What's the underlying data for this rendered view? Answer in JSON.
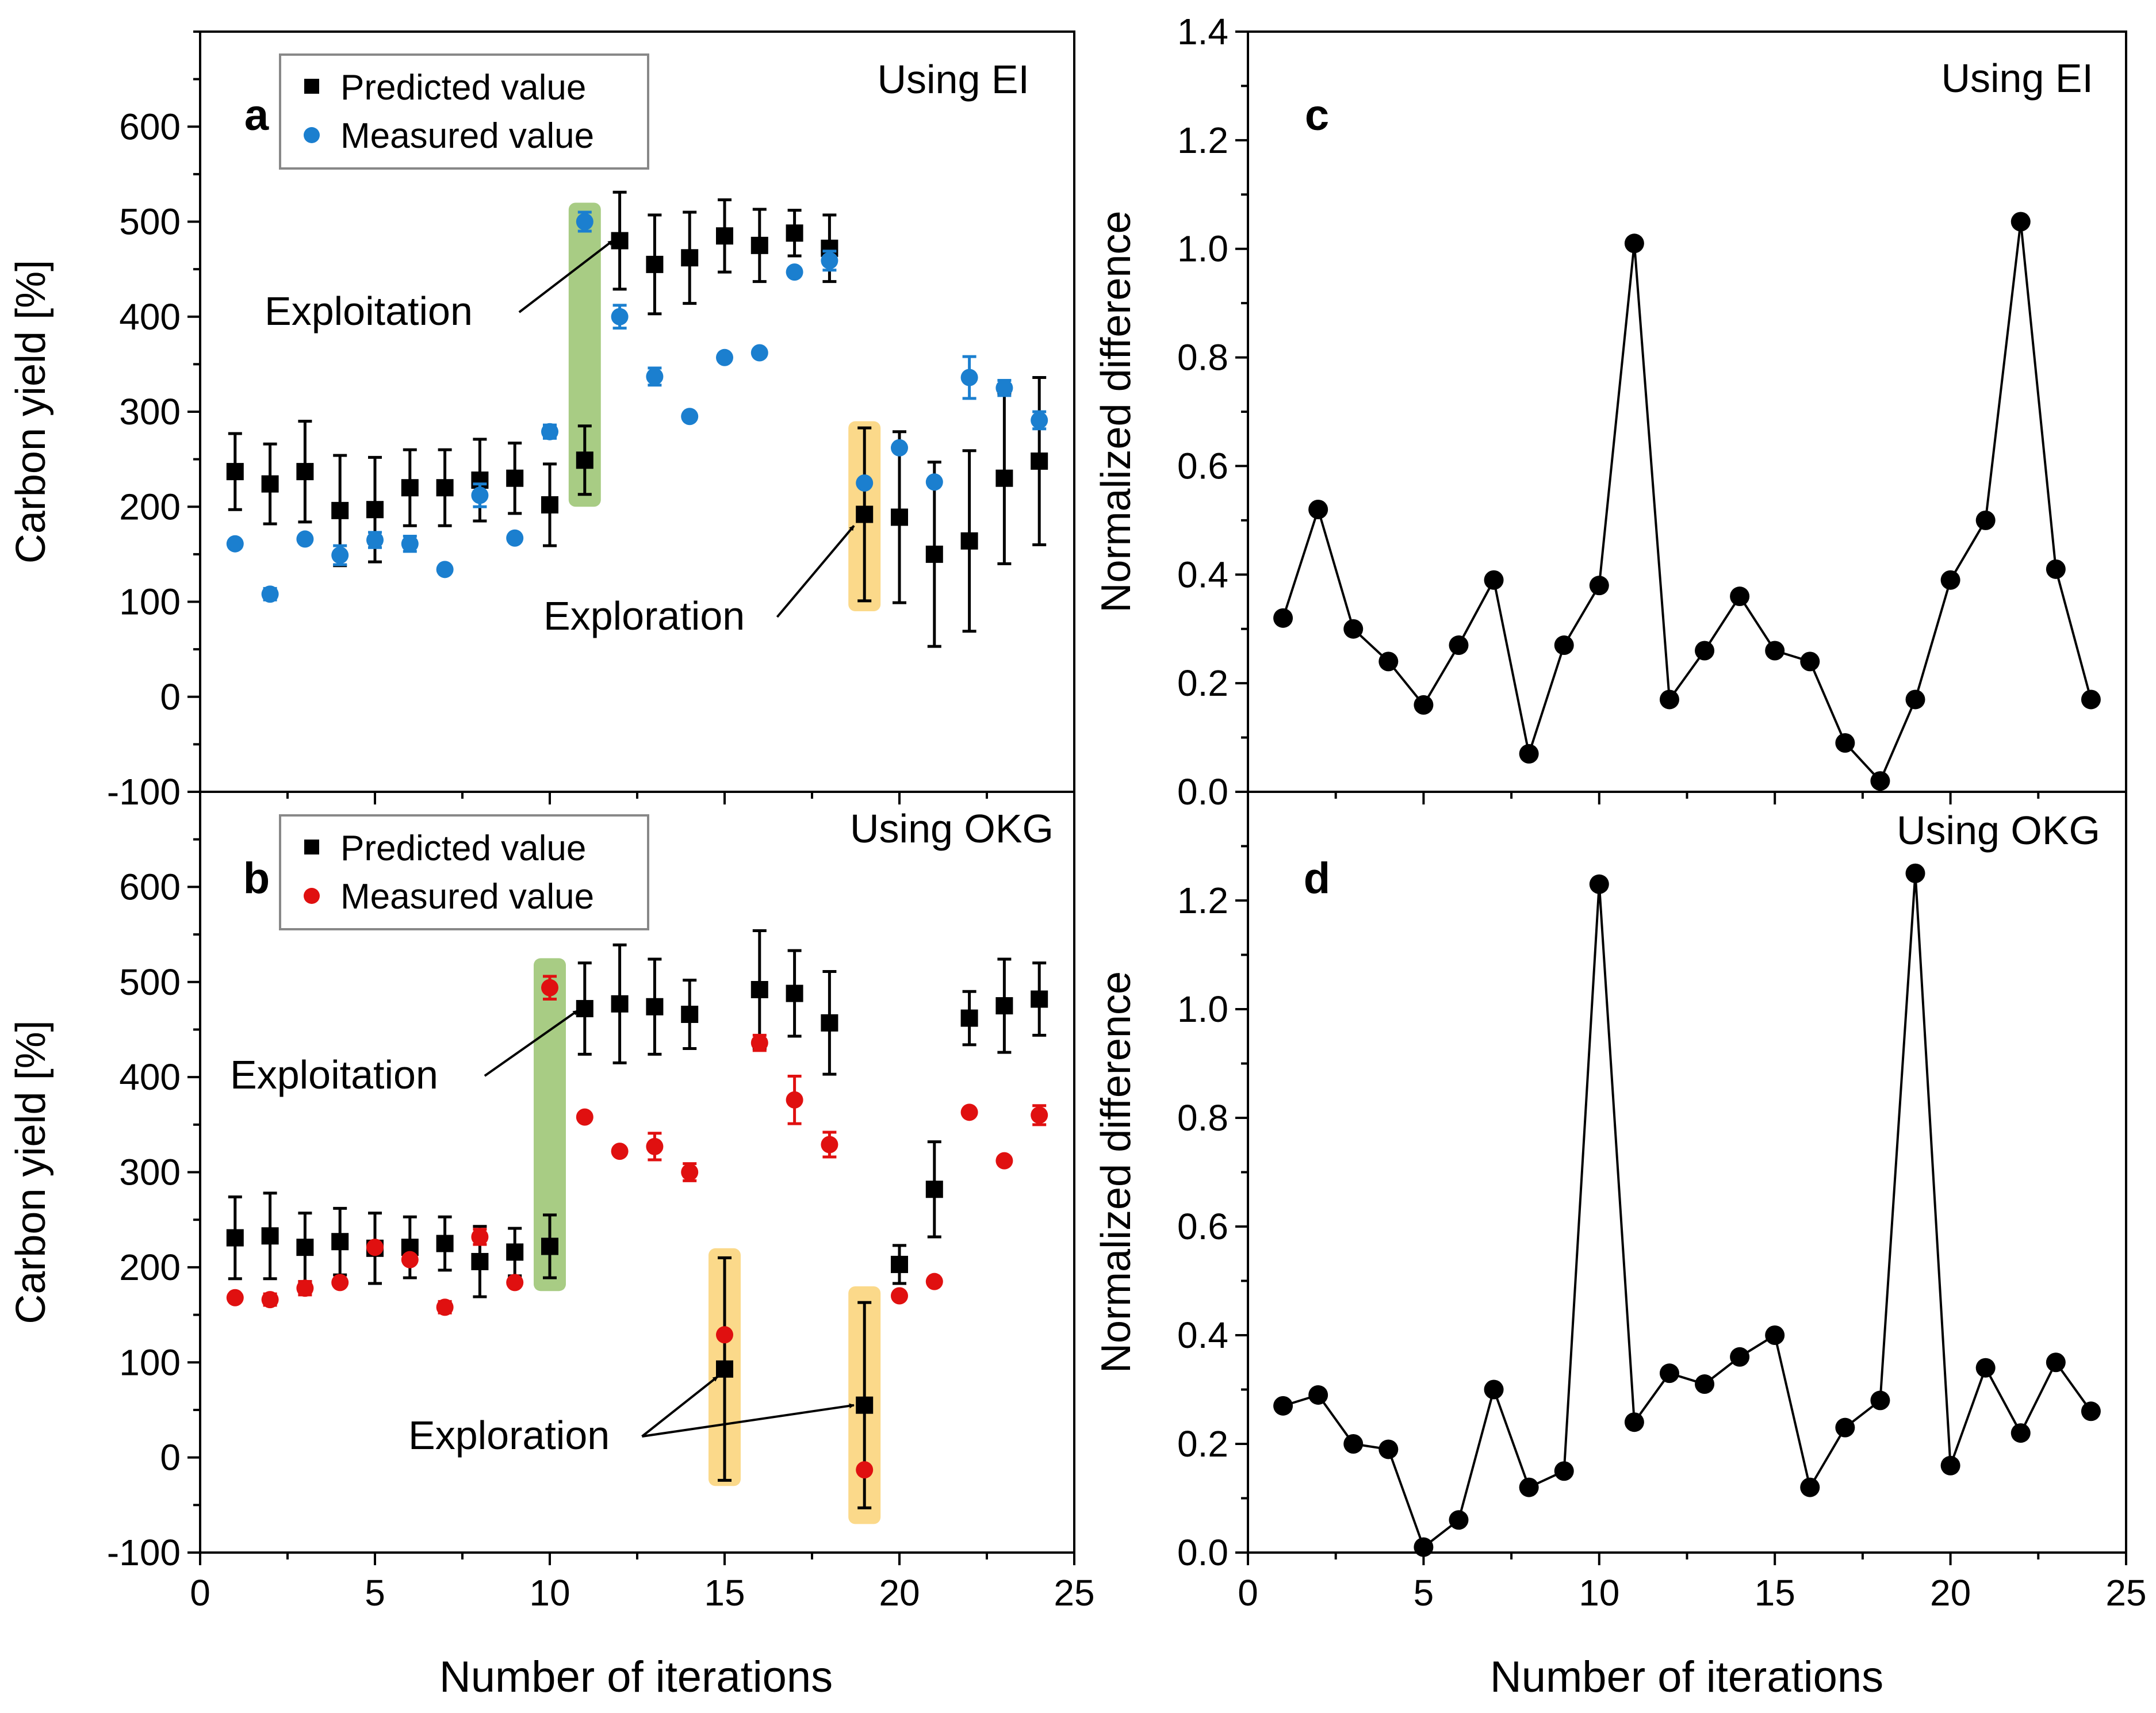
{
  "figure": {
    "xlabel": "Number of iterations",
    "colors": {
      "predicted": "#000000",
      "measured_ei": "#1b7fcf",
      "measured_okg": "#e01010",
      "exploit_highlight": "#a8cc84",
      "explore_highlight": "#fbd98a"
    }
  },
  "chart_data": [
    {
      "id": "a",
      "panel_label": "a",
      "type": "scatter",
      "corner_title": "Using EI",
      "xlabel": "Number of iterations",
      "ylabel": "Carbon yield [%]",
      "xlim": [
        0,
        25
      ],
      "ylim": [
        -100,
        700
      ],
      "xticks": [
        0,
        5,
        10,
        15,
        20,
        25
      ],
      "yticks": [
        -100,
        0,
        100,
        200,
        300,
        400,
        500,
        600
      ],
      "legend": {
        "position": "top-left",
        "entries": [
          "Predicted value",
          "Measured value"
        ]
      },
      "series": [
        {
          "name": "Predicted value",
          "marker": "square",
          "x": [
            1,
            2,
            3,
            4,
            5,
            6,
            7,
            8,
            9,
            10,
            11,
            12,
            13,
            14,
            15,
            16,
            17,
            18,
            19,
            20,
            21,
            22,
            23,
            24
          ],
          "values": [
            237,
            224,
            237,
            196,
            197,
            220,
            220,
            228,
            230,
            202,
            249,
            480,
            455,
            462,
            485,
            475,
            488,
            472,
            192,
            189,
            150,
            164,
            230,
            248
          ],
          "err": [
            40,
            42,
            53,
            58,
            55,
            40,
            40,
            43,
            37,
            43,
            36,
            51,
            52,
            48,
            38,
            38,
            24,
            35,
            91,
            90,
            97,
            95,
            90,
            88
          ]
        },
        {
          "name": "Measured value",
          "marker": "circle",
          "x": [
            1,
            2,
            3,
            4,
            5,
            6,
            7,
            8,
            9,
            10,
            11,
            12,
            13,
            14,
            15,
            16,
            17,
            18,
            19,
            20,
            21,
            22,
            23,
            24
          ],
          "values": [
            161,
            108,
            166,
            149,
            165,
            161,
            134,
            212,
            167,
            279,
            500,
            400,
            337,
            295,
            357,
            362,
            447,
            459,
            225,
            262,
            226,
            336,
            325,
            291
          ],
          "err": [
            0,
            6,
            0,
            10,
            8,
            8,
            0,
            12,
            0,
            7,
            10,
            12,
            9,
            0,
            0,
            0,
            0,
            10,
            0,
            0,
            0,
            22,
            8,
            9
          ]
        }
      ],
      "highlights": [
        {
          "x": 11,
          "y_range": [
            200,
            520
          ],
          "kind": "exploit"
        },
        {
          "x": 19,
          "y_range": [
            90,
            290
          ],
          "kind": "explore"
        }
      ],
      "annotations": [
        {
          "text": "Exploitation",
          "target_x": 11.8,
          "target_y": 480
        },
        {
          "text": "Exploration",
          "target_x": 18.7,
          "target_y": 180
        }
      ]
    },
    {
      "id": "b",
      "panel_label": "b",
      "type": "scatter",
      "corner_title": "Using OKG",
      "xlabel": "Number of iterations",
      "ylabel": "Carbon yield [%]",
      "xlim": [
        0,
        25
      ],
      "ylim": [
        -100,
        700
      ],
      "xticks": [
        0,
        5,
        10,
        15,
        20,
        25
      ],
      "yticks": [
        -100,
        0,
        100,
        200,
        300,
        400,
        500,
        600
      ],
      "legend": {
        "position": "top-left",
        "entries": [
          "Predicted value",
          "Measured value"
        ]
      },
      "series": [
        {
          "name": "Predicted value",
          "marker": "square",
          "x": [
            1,
            2,
            3,
            4,
            5,
            6,
            7,
            8,
            9,
            10,
            11,
            12,
            13,
            14,
            15,
            16,
            17,
            18,
            19,
            20,
            21,
            22,
            23,
            24
          ],
          "values": [
            231,
            233,
            221,
            227,
            220,
            221,
            225,
            206,
            216,
            222,
            472,
            477,
            474,
            466,
            93,
            492,
            488,
            457,
            55,
            203,
            282,
            462,
            475,
            482
          ],
          "err": [
            43,
            45,
            36,
            35,
            37,
            32,
            28,
            37,
            25,
            33,
            48,
            62,
            50,
            36,
            117,
            62,
            45,
            54,
            108,
            20,
            50,
            28,
            49,
            38
          ]
        },
        {
          "name": "Measured value",
          "marker": "circle",
          "x": [
            1,
            2,
            3,
            4,
            5,
            6,
            7,
            8,
            9,
            10,
            11,
            12,
            13,
            14,
            15,
            16,
            17,
            18,
            19,
            20,
            21,
            22,
            23,
            24
          ],
          "values": [
            168,
            166,
            178,
            184,
            221,
            208,
            158,
            232,
            184,
            494,
            358,
            322,
            327,
            300,
            129,
            436,
            376,
            329,
            -13,
            170,
            185,
            363,
            312,
            360
          ],
          "err": [
            0,
            6,
            7,
            0,
            0,
            0,
            6,
            8,
            0,
            12,
            0,
            0,
            14,
            9,
            0,
            8,
            25,
            13,
            0,
            0,
            0,
            0,
            0,
            10
          ]
        }
      ],
      "highlights": [
        {
          "x": 10,
          "y_range": [
            175,
            525
          ],
          "kind": "exploit"
        },
        {
          "x": 15,
          "y_range": [
            -30,
            220
          ],
          "kind": "explore"
        },
        {
          "x": 19,
          "y_range": [
            -70,
            180
          ],
          "kind": "explore"
        }
      ],
      "annotations": [
        {
          "text": "Exploitation",
          "target_x": 10.8,
          "target_y": 470
        },
        {
          "text": "Exploration",
          "target_x": 14.8,
          "target_y": 85
        },
        {
          "text": "Exploration",
          "target_x": 18.7,
          "target_y": 55
        }
      ]
    },
    {
      "id": "c",
      "panel_label": "c",
      "type": "line",
      "corner_title": "Using EI",
      "xlabel": "Number of iterations",
      "ylabel": "Normalized difference",
      "xlim": [
        0,
        25
      ],
      "ylim": [
        0,
        1.4
      ],
      "xticks": [
        0,
        5,
        10,
        15,
        20,
        25
      ],
      "yticks": [
        0.0,
        0.2,
        0.4,
        0.6,
        0.8,
        1.0,
        1.2,
        1.4
      ],
      "ytick_labels": [
        "0.0",
        "0.2",
        "0.4",
        "0.6",
        "0.8",
        "1.0",
        "1.2",
        "1.4"
      ],
      "series": [
        {
          "name": "Normalized difference",
          "marker": "circle",
          "x": [
            1,
            2,
            3,
            4,
            5,
            6,
            7,
            8,
            9,
            10,
            11,
            12,
            13,
            14,
            15,
            16,
            17,
            18,
            19,
            20,
            21,
            22,
            23,
            24
          ],
          "values": [
            0.32,
            0.52,
            0.3,
            0.24,
            0.16,
            0.27,
            0.39,
            0.07,
            0.27,
            0.38,
            1.01,
            0.17,
            0.26,
            0.36,
            0.26,
            0.24,
            0.09,
            0.02,
            0.17,
            0.39,
            0.5,
            1.05,
            0.41,
            0.17
          ]
        }
      ]
    },
    {
      "id": "d",
      "panel_label": "d",
      "type": "line",
      "corner_title": "Using OKG",
      "xlabel": "Number of iterations",
      "ylabel": "Normalized difference",
      "xlim": [
        0,
        25
      ],
      "ylim": [
        0,
        1.4
      ],
      "xticks": [
        0,
        5,
        10,
        15,
        20,
        25
      ],
      "yticks": [
        0.0,
        0.2,
        0.4,
        0.6,
        0.8,
        1.0,
        1.2
      ],
      "ytick_labels": [
        "0.0",
        "0.2",
        "0.4",
        "0.6",
        "0.8",
        "1.0",
        "1.2"
      ],
      "series": [
        {
          "name": "Normalized difference",
          "marker": "circle",
          "x": [
            1,
            2,
            3,
            4,
            5,
            6,
            7,
            8,
            9,
            10,
            11,
            12,
            13,
            14,
            15,
            16,
            17,
            18,
            19,
            20,
            21,
            22,
            23,
            24
          ],
          "values": [
            0.27,
            0.29,
            0.2,
            0.19,
            0.01,
            0.06,
            0.3,
            0.12,
            0.15,
            1.23,
            0.24,
            0.33,
            0.31,
            0.36,
            0.4,
            0.12,
            0.23,
            0.28,
            1.25,
            0.16,
            0.34,
            0.22,
            0.35,
            0.26
          ]
        }
      ]
    }
  ]
}
